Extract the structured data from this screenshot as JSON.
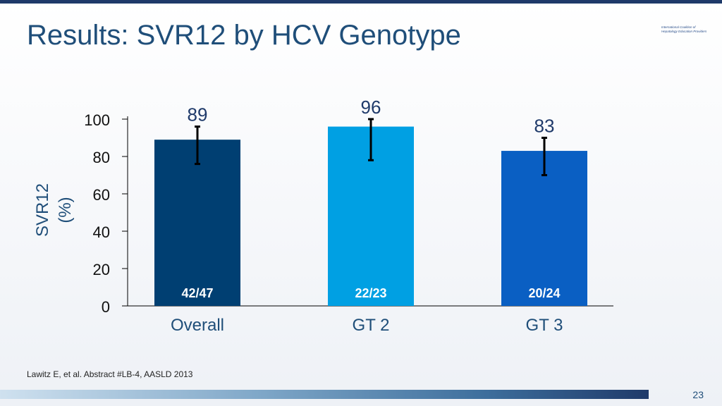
{
  "slide": {
    "title": "Results: SVR12 by HCV Genotype",
    "logo_lines": [
      "International Coalition of",
      "Hepatology Education Providers"
    ],
    "citation": "Lawitz E, et al. Abstract #LB-4, AASLD 2013",
    "page_number": "23"
  },
  "chart_data": {
    "type": "bar",
    "categories": [
      "Overall",
      "GT 2",
      "GT 3"
    ],
    "values": [
      89,
      96,
      83
    ],
    "value_labels": [
      "89",
      "96",
      "83"
    ],
    "fraction_labels": [
      "42/47",
      "22/23",
      "20/24"
    ],
    "error_bars": [
      [
        76,
        96
      ],
      [
        78,
        100
      ],
      [
        70,
        90
      ]
    ],
    "bar_colors": [
      "#003f72",
      "#00a0e3",
      "#0a5fc3"
    ],
    "ylabel_lines": [
      "SVR12",
      "(%)"
    ],
    "yticks": [
      "0",
      "20",
      "40",
      "60",
      "80",
      "100"
    ],
    "ylim": [
      0,
      100
    ],
    "grid": false
  }
}
